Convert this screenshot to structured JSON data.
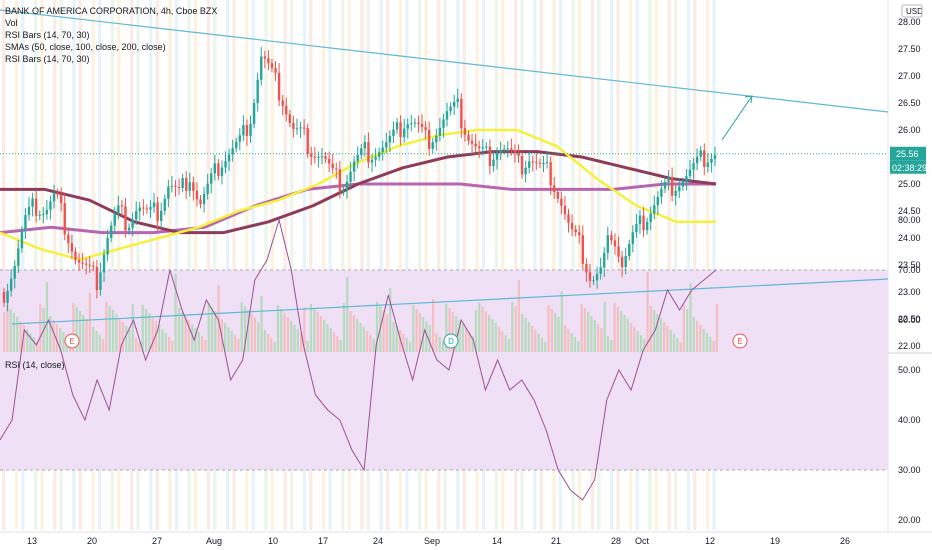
{
  "legend": {
    "symbol": "BANK OF AMERICA CORPORATION, 4h, Cboe BZX",
    "line2": "Vol",
    "line3": "RSI Bars (14, 70, 30)",
    "line4": "SMAs (50, close, 100, close, 200, close)",
    "line5": "RSI Bars (14, 70, 30)"
  },
  "currency": "USD",
  "last_price": "25.56",
  "countdown": "02:38:29",
  "rsi_title": "RSI (14, close)",
  "events": [
    "E",
    "D",
    "E"
  ],
  "colors": {
    "up": "#26a69a",
    "down": "#ef5350",
    "sma50": "#f5f03c",
    "sma100": "#8e3a59",
    "sma200": "#b865b0",
    "trendline": "#5fb8d6",
    "rsi_line": "#9c4f96",
    "rsi_band": "#f0e0f5"
  },
  "chart_data": [
    {
      "type": "candlestick",
      "title": "BANK OF AMERICA CORPORATION, 4h, Cboe BZX",
      "ylim": [
        22.0,
        28.0
      ],
      "y_ticks": [
        "28.00",
        "27.50",
        "27.00",
        "26.50",
        "26.00",
        "25.50",
        "25.00",
        "24.50",
        "24.00",
        "23.50",
        "23.00",
        "22.50",
        "22.00"
      ],
      "x_ticks": [
        "13",
        "20",
        "27",
        "Aug",
        "10",
        "17",
        "24",
        "Sep",
        "14",
        "21",
        "28",
        "Oct",
        "12",
        "19",
        "26"
      ],
      "close_path": [
        23.0,
        23.5,
        24.3,
        24.6,
        24.5,
        24.8,
        24.2,
        23.6,
        23.4,
        23.2,
        24.0,
        24.5,
        24.3,
        24.6,
        24.4,
        24.5,
        25.0,
        24.8,
        25.2,
        24.6,
        25.0,
        25.4,
        25.6,
        25.8,
        26.3,
        27.4,
        27.0,
        26.6,
        26.0,
        25.9,
        25.6,
        25.5,
        25.1,
        25.0,
        25.4,
        25.6,
        25.6,
        25.7,
        25.9,
        26.2,
        26.1,
        25.8,
        26.0,
        26.3,
        26.4,
        25.9,
        25.6,
        25.5,
        25.7,
        25.6,
        25.3,
        25.5,
        25.3,
        25.2,
        24.7,
        24.1,
        23.8,
        23.2,
        23.4,
        24.2,
        23.5,
        24.0,
        24.3,
        24.6,
        24.9,
        25.0,
        25.1,
        25.3,
        25.5,
        25.56
      ],
      "sma50_path": [
        24.1,
        23.8,
        23.6,
        23.8,
        24.0,
        24.2,
        24.5,
        24.7,
        25.0,
        25.4,
        25.7,
        25.9,
        26.0,
        26.0,
        25.7,
        25.1,
        24.6,
        24.3,
        24.3
      ],
      "sma100_path": [
        24.9,
        24.9,
        24.7,
        24.3,
        24.1,
        24.1,
        24.3,
        24.6,
        25.0,
        25.3,
        25.5,
        25.6,
        25.6,
        25.5,
        25.3,
        25.1,
        25.0
      ],
      "sma200_path": [
        24.1,
        24.2,
        24.1,
        24.1,
        24.2,
        24.6,
        24.9,
        25.0,
        25.0,
        25.0,
        24.9,
        24.9,
        24.9,
        25.0,
        25.0
      ],
      "upper_trendline": [
        [
          0,
          28.0
        ],
        [
          1,
          26.3
        ]
      ],
      "lower_trendline": [
        [
          0,
          22.4
        ],
        [
          1,
          23.2
        ]
      ]
    },
    {
      "type": "line",
      "title": "RSI (14, close)",
      "ylim": [
        20,
        80
      ],
      "y_ticks": [
        "80.00",
        "70.00",
        "60.00",
        "50.00",
        "40.00",
        "30.00",
        "20.00"
      ],
      "band": [
        30,
        70
      ],
      "values": [
        36,
        40,
        58,
        55,
        60,
        54,
        45,
        40,
        48,
        42,
        55,
        60,
        52,
        58,
        70,
        62,
        56,
        64,
        60,
        48,
        52,
        68,
        72,
        80,
        70,
        55,
        45,
        42,
        40,
        34,
        30,
        55,
        65,
        56,
        48,
        58,
        52,
        50,
        60,
        56,
        46,
        52,
        46,
        48,
        44,
        38,
        30,
        26,
        24,
        28,
        44,
        50,
        46,
        54,
        58,
        66,
        62,
        66,
        68,
        70
      ]
    }
  ]
}
